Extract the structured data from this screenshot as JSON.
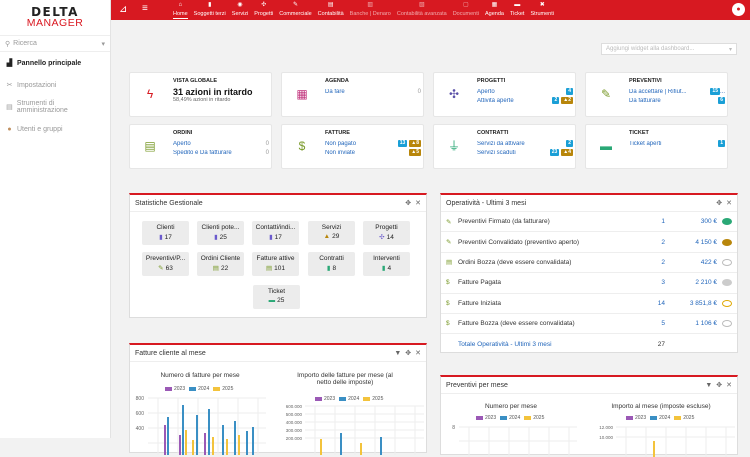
{
  "sidebar": {
    "logo_top": "DELTA",
    "logo_bottom": "MANAGER",
    "search_placeholder": "Ricerca",
    "items": [
      {
        "label": "Pannello principale",
        "icon": "chart-line-icon"
      },
      {
        "label": "Impostazioni",
        "icon": "wrench-icon"
      },
      {
        "label": "Strumenti di amministrazione",
        "icon": "tools-icon"
      },
      {
        "label": "Utenti e gruppi",
        "icon": "user-icon"
      }
    ]
  },
  "topbar": {
    "tabs": [
      {
        "label": "Home",
        "icon": "⌂"
      },
      {
        "label": "Soggetti terzi",
        "icon": "▮"
      },
      {
        "label": "Servizi",
        "icon": "◉"
      },
      {
        "label": "Progetti",
        "icon": "✣"
      },
      {
        "label": "Commerciale",
        "icon": "✎"
      },
      {
        "label": "Contabilità",
        "icon": "▤"
      },
      {
        "label": "Banche | Denaro",
        "icon": "▥"
      },
      {
        "label": "Contabilità avanzata",
        "icon": "▧"
      },
      {
        "label": "Documenti",
        "icon": "▢"
      },
      {
        "label": "Agenda",
        "icon": "▦"
      },
      {
        "label": "Ticket",
        "icon": "▬"
      },
      {
        "label": "Strumenti",
        "icon": "✖"
      }
    ]
  },
  "add_widget_placeholder": "Aggiungi widget alla dashboard...",
  "cards": {
    "vista": {
      "title": "VISTA GLOBALE",
      "big": "31 azioni in ritardo",
      "small": "58,49% azioni in ritardo"
    },
    "agenda": {
      "title": "AGENDA",
      "rows": [
        {
          "label": "Da fare",
          "count": "0"
        }
      ]
    },
    "progetti": {
      "title": "PROGETTI",
      "rows": [
        {
          "label": "Aperto",
          "b1": "4"
        },
        {
          "label": "Attività aperte",
          "b1": "2",
          "b2": "2"
        }
      ]
    },
    "preventivi": {
      "title": "PREVENTIVI",
      "rows": [
        {
          "label": "Da accettare | Rifiut...",
          "b1": "15",
          "more": "..."
        },
        {
          "label": "Da fatturare",
          "b1": "6"
        }
      ]
    },
    "ordini": {
      "title": "ORDINI",
      "rows": [
        {
          "label": "Aperto",
          "count": "0"
        },
        {
          "label": "Spedito e Da fatturare",
          "count": "0"
        }
      ]
    },
    "fatture": {
      "title": "FATTURE",
      "rows": [
        {
          "label": "Non pagato",
          "b1": "13",
          "b2": "8"
        },
        {
          "label": "Non inviate",
          "b2": "5"
        }
      ]
    },
    "contratti": {
      "title": "CONTRATTI",
      "rows": [
        {
          "label": "Servizi da attivare",
          "b1": "2"
        },
        {
          "label": "Servizi scaduti",
          "b1": "23",
          "b2": "4"
        }
      ]
    },
    "ticket": {
      "title": "TICKET",
      "rows": [
        {
          "label": "Ticket aperti",
          "b1": "1"
        }
      ]
    }
  },
  "stats": {
    "title": "Statistiche Gestionale",
    "items": [
      {
        "label": "Clienti",
        "value": "17"
      },
      {
        "label": "Clienti pote...",
        "value": "25"
      },
      {
        "label": "Contatti/indi...",
        "value": "17"
      },
      {
        "label": "Servizi",
        "value": "29"
      },
      {
        "label": "Progetti",
        "value": "14"
      },
      {
        "label": "Preventivi/P...",
        "value": "63"
      },
      {
        "label": "Ordini Cliente",
        "value": "22"
      },
      {
        "label": "Fatture attive",
        "value": "101"
      },
      {
        "label": "Contratti",
        "value": "8"
      },
      {
        "label": "Interventi",
        "value": "4"
      },
      {
        "label": "Ticket",
        "value": "25"
      }
    ]
  },
  "operativita": {
    "title": "Operatività - Ultimi 3 mesi",
    "rows": [
      {
        "label": "Preventivi Firmato (da fatturare)",
        "n": "1",
        "v": "300 €",
        "color": "#2aa876",
        "filled": true
      },
      {
        "label": "Preventivi Convalidato (preventivo aperto)",
        "n": "2",
        "v": "4 150 €",
        "color": "#b8860b",
        "filled": true
      },
      {
        "label": "Ordini Bozza (deve essere convalidata)",
        "n": "2",
        "v": "422 €",
        "color": "#bbbbbb",
        "filled": false
      },
      {
        "label": "Fatture Pagata",
        "n": "3",
        "v": "2 210 €",
        "color": "#cccccc",
        "filled": true
      },
      {
        "label": "Fatture Iniziata",
        "n": "14",
        "v": "3 851,8 €",
        "color": "#e0a800",
        "filled": false
      },
      {
        "label": "Fatture Bozza (deve essere convalidata)",
        "n": "5",
        "v": "1 106 €",
        "color": "#bbbbbb",
        "filled": false
      }
    ],
    "total_label": "Totale Operatività - Ultimi 3 mesi",
    "total": "27"
  },
  "fatture_panel": {
    "title": "Fatture cliente al mese",
    "chart1_title": "Numero di fatture per mese",
    "chart2_title": "Importo delle fatture per mese (al netto delle imposte)",
    "legend": [
      "2023",
      "2024",
      "2025"
    ],
    "colors": [
      "#9b59b6",
      "#3a8fc4",
      "#f3c33c"
    ],
    "y1_ticks": [
      "800",
      "600",
      "400"
    ],
    "y2_ticks": [
      "600.000",
      "500.000",
      "400.000",
      "300.000",
      "200.000"
    ]
  },
  "preventivi_panel": {
    "title": "Preventivi per mese",
    "chart1_title": "Numero per mese",
    "chart2_title": "Importo al mese (imposte escluse)",
    "legend": [
      "2023",
      "2024",
      "2025"
    ],
    "y1_ticks": [
      "8"
    ],
    "y2_ticks": [
      "12.000",
      "10.000"
    ]
  }
}
